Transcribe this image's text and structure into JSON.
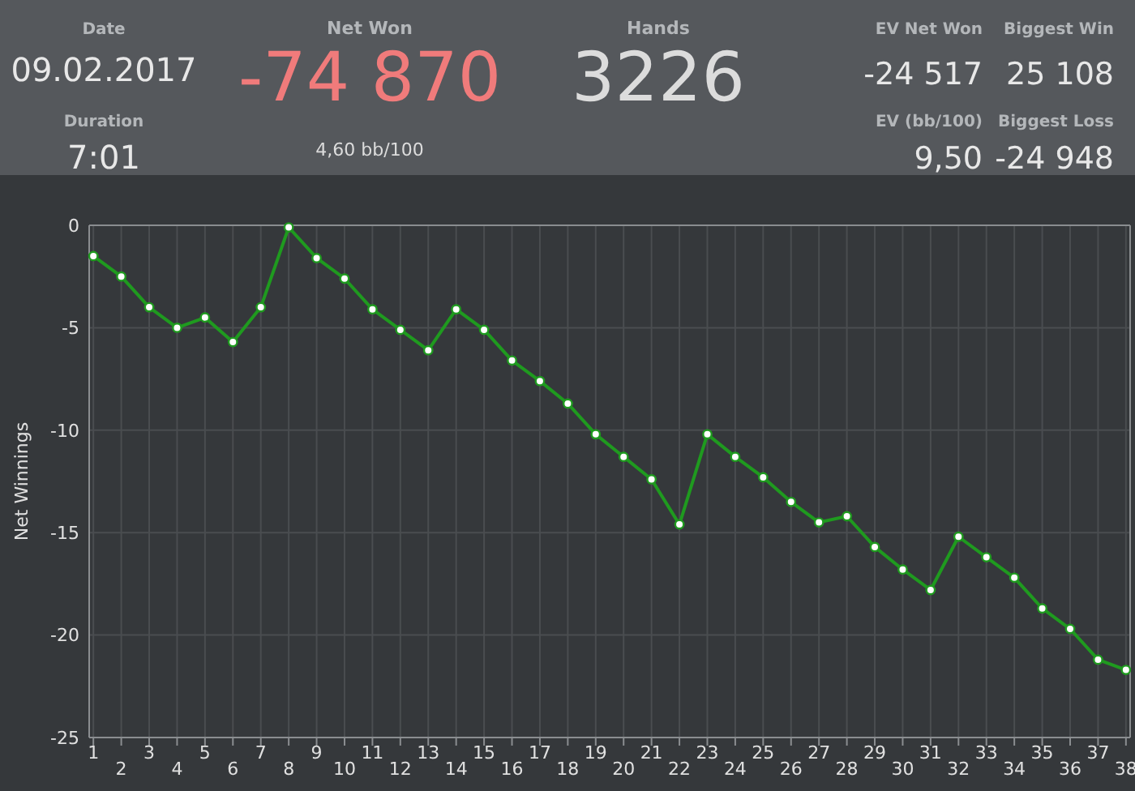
{
  "chart_data": [
    {
      "type": "other",
      "annotations": [
        "Date",
        "09.02.2017",
        "Duration",
        "7:01",
        "Net Won",
        "-74 870",
        "4,60 bb/100",
        "Hands",
        "3226",
        "EV Net Won",
        "-24 517",
        "Biggest Win",
        "25 108",
        "EV (bb/100)",
        "9,50",
        "Biggest Loss",
        "-24 948"
      ]
    },
    {
      "type": "line",
      "ylabel": "Net Winnings",
      "categories": [
        "1",
        "2",
        "3",
        "4",
        "5",
        "6",
        "7",
        "8",
        "9",
        "10",
        "11",
        "12",
        "13",
        "14",
        "15",
        "16",
        "17",
        "18",
        "19",
        "20",
        "21",
        "22",
        "23",
        "24",
        "25",
        "26",
        "27",
        "28",
        "29",
        "30",
        "31",
        "32",
        "33",
        "34",
        "35",
        "36",
        "37",
        "38"
      ],
      "series": [
        {
          "color": "#1f9a1f",
          "values": [
            -1.5,
            -2.5,
            -4.0,
            -5.0,
            -4.5,
            -5.7,
            -4.0,
            -0.1,
            -1.6,
            -2.6,
            -4.1,
            -5.1,
            -6.1,
            -4.1,
            -5.1,
            -6.6,
            -7.6,
            -8.7,
            -10.2,
            -11.3,
            -12.4,
            -14.6,
            -10.2,
            -11.3,
            -12.3,
            -13.5,
            -14.5,
            -14.2,
            -15.7,
            -16.8,
            -17.8,
            -15.2,
            -16.2,
            -17.2,
            -18.7,
            -19.7,
            -21.2,
            -21.7
          ]
        }
      ],
      "ylim": [
        -25,
        0
      ],
      "yticks": [
        0,
        -5,
        -10,
        -15,
        -20,
        -25
      ],
      "grid": true,
      "marker": "circle",
      "line_style": "solid"
    }
  ]
}
